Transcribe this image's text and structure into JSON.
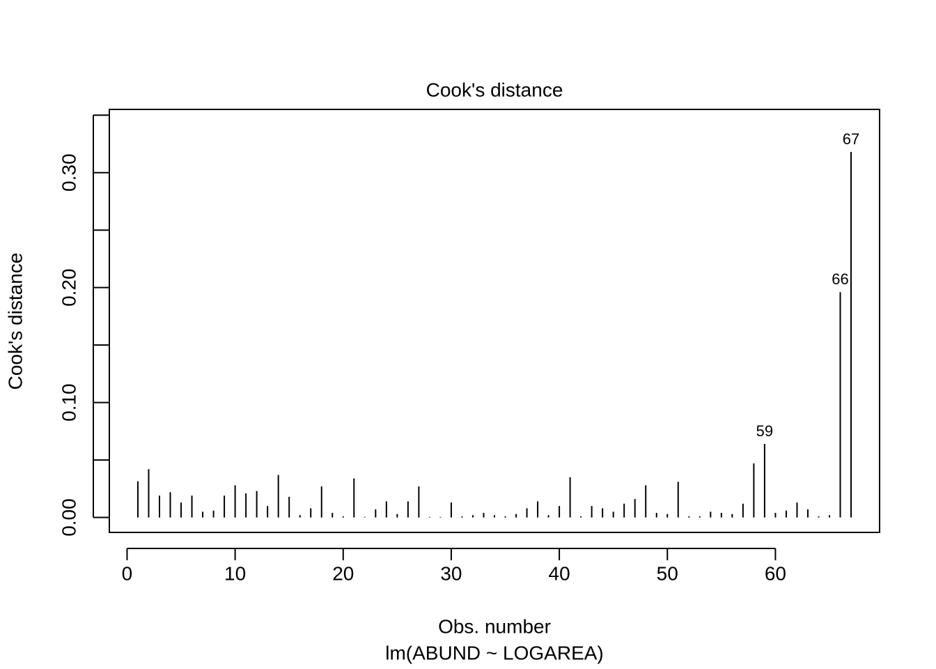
{
  "chart_data": {
    "type": "histogram-lines",
    "title": "Cook's distance",
    "xlabel": "Obs. number",
    "ylabel": "Cook's distance",
    "subtitle": "lm(ABUND ~ LOGAREA)",
    "x": [
      1,
      2,
      3,
      4,
      5,
      6,
      7,
      8,
      9,
      10,
      11,
      12,
      13,
      14,
      15,
      16,
      17,
      18,
      19,
      20,
      21,
      22,
      23,
      24,
      25,
      26,
      27,
      28,
      29,
      30,
      31,
      32,
      33,
      34,
      35,
      36,
      37,
      38,
      39,
      40,
      41,
      42,
      43,
      44,
      45,
      46,
      47,
      48,
      49,
      50,
      51,
      52,
      53,
      54,
      55,
      56,
      57,
      58,
      59,
      60,
      61,
      62,
      63,
      64,
      65,
      66,
      67
    ],
    "values": [
      0.0315,
      0.042,
      0.019,
      0.022,
      0.013,
      0.019,
      0.005,
      0.006,
      0.019,
      0.028,
      0.021,
      0.023,
      0.01,
      0.037,
      0.018,
      0.002,
      0.008,
      0.027,
      0.004,
      0.001,
      0.034,
      0.0005,
      0.007,
      0.014,
      0.003,
      0.014,
      0.027,
      0.0005,
      0.0005,
      0.013,
      0.001,
      0.002,
      0.004,
      0.002,
      0.001,
      0.003,
      0.008,
      0.014,
      0.002,
      0.01,
      0.035,
      0.001,
      0.01,
      0.008,
      0.005,
      0.012,
      0.016,
      0.028,
      0.004,
      0.003,
      0.031,
      0.001,
      0.001,
      0.005,
      0.004,
      0.003,
      0.012,
      0.047,
      0.064,
      0.004,
      0.006,
      0.013,
      0.007,
      0.001,
      0.002,
      0.196,
      0.318
    ],
    "point_labels": [
      null,
      null,
      null,
      null,
      null,
      null,
      null,
      null,
      null,
      null,
      null,
      null,
      null,
      null,
      null,
      null,
      null,
      null,
      null,
      null,
      null,
      null,
      null,
      null,
      null,
      null,
      null,
      null,
      null,
      null,
      null,
      null,
      null,
      null,
      null,
      null,
      null,
      null,
      null,
      null,
      null,
      null,
      null,
      null,
      null,
      null,
      null,
      null,
      null,
      null,
      null,
      null,
      null,
      null,
      null,
      null,
      null,
      null,
      "59",
      null,
      null,
      null,
      null,
      null,
      null,
      "66",
      "67"
    ],
    "color": "#000000",
    "xlim": [
      -1.64,
      69.64
    ],
    "ylim": [
      -0.013,
      0.355
    ],
    "xticks": [
      0,
      10,
      20,
      30,
      40,
      50,
      60
    ],
    "yticks": [
      {
        "value": 0,
        "label": "0.00"
      },
      {
        "value": 0.1,
        "label": "0.10"
      },
      {
        "value": 0.2,
        "label": "0.20"
      },
      {
        "value": 0.3,
        "label": "0.30"
      }
    ],
    "yticks_unlabeled": [
      0.05,
      0.15,
      0.25,
      0.35
    ]
  }
}
